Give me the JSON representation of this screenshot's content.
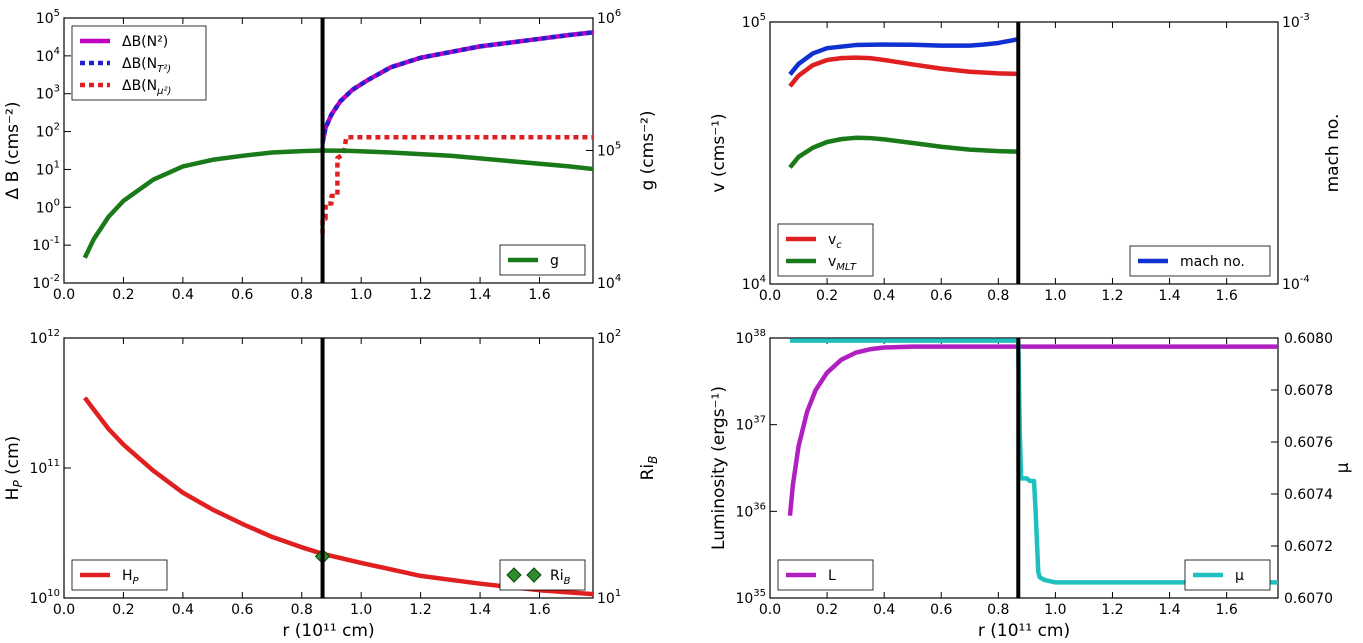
{
  "chart_data": [
    {
      "id": "p1",
      "type": "line",
      "title": "",
      "xlabel": "",
      "ylabel": "Δ B (cms⁻²)",
      "ylabel_right": "g (cms⁻²)",
      "xlim": [
        0.0,
        1.78
      ],
      "ylim_log": [
        -2,
        5
      ],
      "ylim_right_log": [
        4,
        6
      ],
      "xticks": [
        "0.0",
        "0.2",
        "0.4",
        "0.6",
        "0.8",
        "1.0",
        "1.2",
        "1.4",
        "1.6"
      ],
      "yticks": [
        {
          "base": "10",
          "exp": "-2"
        },
        {
          "base": "10",
          "exp": "-1"
        },
        {
          "base": "10",
          "exp": "0"
        },
        {
          "base": "10",
          "exp": "1"
        },
        {
          "base": "10",
          "exp": "2"
        },
        {
          "base": "10",
          "exp": "3"
        },
        {
          "base": "10",
          "exp": "4"
        },
        {
          "base": "10",
          "exp": "5"
        }
      ],
      "yticks_right": [
        {
          "base": "10",
          "exp": "4"
        },
        {
          "base": "10",
          "exp": "5"
        },
        {
          "base": "10",
          "exp": "6"
        }
      ],
      "vline_x": 0.87,
      "series": [
        {
          "name": "ΔB(N²)",
          "axis": "left",
          "color": "#c000c0",
          "dash": "solid",
          "x": [
            0.87,
            0.88,
            0.9,
            0.93,
            0.97,
            1.02,
            1.1,
            1.2,
            1.3,
            1.4,
            1.5,
            1.6,
            1.7,
            1.78
          ],
          "y": [
            1.7,
            2.1,
            2.45,
            2.8,
            3.1,
            3.35,
            3.7,
            3.95,
            4.1,
            4.25,
            4.35,
            4.45,
            4.55,
            4.62
          ]
        },
        {
          "name": "ΔB(N_T²)",
          "axis": "left",
          "color": "#2020d0",
          "dash": "dots",
          "x": [
            0.87,
            0.88,
            0.9,
            0.93,
            0.97,
            1.02,
            1.1,
            1.2,
            1.3,
            1.4,
            1.5,
            1.6,
            1.7,
            1.78
          ],
          "y": [
            1.7,
            2.1,
            2.45,
            2.8,
            3.1,
            3.35,
            3.7,
            3.95,
            4.1,
            4.25,
            4.35,
            4.45,
            4.55,
            4.62
          ]
        },
        {
          "name": "ΔB(N_μ²)",
          "axis": "left",
          "color": "#e02020",
          "dash": "dots",
          "x": [
            0.87,
            0.87,
            0.88,
            0.88,
            0.9,
            0.9,
            0.92,
            0.92,
            0.94,
            0.95,
            1.2,
            1.5,
            1.78
          ],
          "y": [
            -0.7,
            -0.3,
            -0.3,
            0.1,
            0.1,
            0.3,
            0.3,
            1.3,
            1.4,
            1.85,
            1.85,
            1.85,
            1.85
          ]
        },
        {
          "name": "g",
          "axis": "right",
          "color": "#1a7a1a",
          "dash": "solid",
          "x": [
            0.07,
            0.1,
            0.15,
            0.2,
            0.3,
            0.4,
            0.5,
            0.6,
            0.7,
            0.8,
            0.87,
            0.95,
            1.1,
            1.3,
            1.5,
            1.7,
            1.78
          ],
          "y": [
            4.19,
            4.33,
            4.5,
            4.62,
            4.78,
            4.88,
            4.93,
            4.96,
            4.985,
            4.995,
            5.0,
            4.998,
            4.985,
            4.96,
            4.92,
            4.88,
            4.86
          ]
        }
      ],
      "legend_left": {
        "entries": [
          "ΔB(N²)",
          "ΔB(N_T²)",
          "ΔB(N_μ²)"
        ]
      },
      "legend_right": {
        "entries": [
          "g"
        ]
      }
    },
    {
      "id": "p2",
      "type": "line",
      "title": "",
      "xlabel": "",
      "ylabel": "v (cms⁻¹)",
      "ylabel_right": "mach no.",
      "xlim": [
        0.0,
        1.78
      ],
      "ylim_log": [
        4,
        5
      ],
      "ylim_right_log": [
        -4,
        -3
      ],
      "xticks": [
        "0.0",
        "0.2",
        "0.4",
        "0.6",
        "0.8",
        "1.0",
        "1.2",
        "1.4",
        "1.6"
      ],
      "yticks": [
        {
          "base": "10",
          "exp": "4"
        },
        {
          "base": "10",
          "exp": "5"
        }
      ],
      "yticks_right": [
        {
          "base": "10",
          "exp": "-4"
        },
        {
          "base": "10",
          "exp": "-3"
        }
      ],
      "vline_x": 0.87,
      "series": [
        {
          "name": "v_c",
          "axis": "left",
          "color": "#e02020",
          "dash": "solid",
          "x": [
            0.07,
            0.1,
            0.15,
            0.2,
            0.25,
            0.3,
            0.35,
            0.4,
            0.5,
            0.6,
            0.7,
            0.8,
            0.87
          ],
          "y": [
            4.755,
            4.795,
            4.835,
            4.855,
            4.862,
            4.864,
            4.862,
            4.855,
            4.838,
            4.822,
            4.81,
            4.804,
            4.802
          ]
        },
        {
          "name": "v_MLT",
          "axis": "left",
          "color": "#1a7a1a",
          "dash": "solid",
          "x": [
            0.07,
            0.1,
            0.15,
            0.2,
            0.25,
            0.3,
            0.35,
            0.4,
            0.5,
            0.6,
            0.7,
            0.8,
            0.87
          ],
          "y": [
            4.445,
            4.485,
            4.52,
            4.542,
            4.553,
            4.558,
            4.557,
            4.552,
            4.538,
            4.524,
            4.513,
            4.507,
            4.505
          ]
        },
        {
          "name": "mach no.",
          "axis": "right",
          "color": "#1030d0",
          "dash": "solid",
          "x": [
            0.07,
            0.1,
            0.15,
            0.2,
            0.3,
            0.4,
            0.5,
            0.6,
            0.7,
            0.75,
            0.8,
            0.85,
            0.87
          ],
          "y": [
            -3.2,
            -3.16,
            -3.12,
            -3.1,
            -3.088,
            -3.086,
            -3.087,
            -3.09,
            -3.09,
            -3.086,
            -3.08,
            -3.07,
            -3.065
          ]
        }
      ],
      "legend_left": {
        "entries": [
          "v_c",
          "v_MLT"
        ]
      },
      "legend_right": {
        "entries": [
          "mach no."
        ]
      }
    },
    {
      "id": "p3",
      "type": "line",
      "title": "",
      "xlabel": "r (10¹¹ cm)",
      "ylabel": "H_P (cm)",
      "ylabel_right": "Ri_B",
      "xlim": [
        0.0,
        1.78
      ],
      "ylim_log": [
        10,
        12
      ],
      "ylim_right_log": [
        1,
        2
      ],
      "xticks": [
        "0.0",
        "0.2",
        "0.4",
        "0.6",
        "0.8",
        "1.0",
        "1.2",
        "1.4",
        "1.6"
      ],
      "yticks": [
        {
          "base": "10",
          "exp": "10"
        },
        {
          "base": "10",
          "exp": "11"
        },
        {
          "base": "10",
          "exp": "12"
        }
      ],
      "yticks_right": [
        {
          "base": "10",
          "exp": "1"
        },
        {
          "base": "10",
          "exp": "2"
        }
      ],
      "vline_x": 0.87,
      "series": [
        {
          "name": "H_P",
          "axis": "left",
          "color": "#e02020",
          "dash": "solid",
          "x": [
            0.07,
            0.1,
            0.15,
            0.2,
            0.3,
            0.4,
            0.5,
            0.6,
            0.7,
            0.8,
            0.87,
            1.0,
            1.2,
            1.4,
            1.6,
            1.78
          ],
          "y": [
            11.54,
            11.45,
            11.3,
            11.18,
            10.98,
            10.81,
            10.68,
            10.57,
            10.47,
            10.39,
            10.34,
            10.27,
            10.17,
            10.11,
            10.06,
            10.03
          ]
        },
        {
          "name": "Ri_B",
          "axis": "right",
          "color": "#2e8b2e",
          "marker": "diamond",
          "x": [
            0.87
          ],
          "y": [
            1.16
          ]
        }
      ],
      "legend_left": {
        "entries": [
          "H_P"
        ]
      },
      "legend_right": {
        "entries": [
          "Ri_B"
        ]
      }
    },
    {
      "id": "p4",
      "type": "line",
      "title": "",
      "xlabel": "r (10¹¹ cm)",
      "ylabel": "Luminosity (ergs⁻¹)",
      "ylabel_right": "μ",
      "xlim": [
        0.0,
        1.78
      ],
      "ylim_log": [
        35,
        38
      ],
      "ylim_right": [
        0.607,
        0.608
      ],
      "xticks": [
        "0.0",
        "0.2",
        "0.4",
        "0.6",
        "0.8",
        "1.0",
        "1.2",
        "1.4",
        "1.6"
      ],
      "yticks": [
        {
          "base": "10",
          "exp": "35"
        },
        {
          "base": "10",
          "exp": "36"
        },
        {
          "base": "10",
          "exp": "37"
        },
        {
          "base": "10",
          "exp": "38"
        }
      ],
      "yticks_right": [
        "0.6070",
        "0.6072",
        "0.6074",
        "0.6076",
        "0.6078",
        "0.6080"
      ],
      "vline_x": 0.87,
      "series": [
        {
          "name": "L",
          "axis": "left",
          "color": "#b020c0",
          "dash": "solid",
          "x": [
            0.07,
            0.08,
            0.1,
            0.13,
            0.16,
            0.2,
            0.25,
            0.3,
            0.35,
            0.4,
            0.5,
            0.6,
            0.7,
            0.8,
            0.9,
            1.2,
            1.5,
            1.78
          ],
          "y": [
            35.95,
            36.3,
            36.75,
            37.15,
            37.4,
            37.6,
            37.75,
            37.83,
            37.87,
            37.89,
            37.9,
            37.9,
            37.9,
            37.9,
            37.9,
            37.9,
            37.9,
            37.9
          ]
        },
        {
          "name": "μ",
          "axis": "right",
          "color": "#20c0c0",
          "dash": "solid",
          "x": [
            0.07,
            0.8,
            0.86,
            0.87,
            0.875,
            0.88,
            0.9,
            0.91,
            0.925,
            0.93,
            0.94,
            0.945,
            0.96,
            1.0,
            1.1,
            1.3,
            1.5,
            1.78
          ],
          "y": [
            0.60799,
            0.60799,
            0.60799,
            0.60799,
            0.60765,
            0.60746,
            0.60746,
            0.60745,
            0.60745,
            0.60735,
            0.6071,
            0.60708,
            0.60707,
            0.60706,
            0.60706,
            0.60706,
            0.60706,
            0.60706
          ]
        }
      ],
      "legend_left": {
        "entries": [
          "L"
        ]
      },
      "legend_right": {
        "entries": [
          "μ"
        ]
      }
    }
  ]
}
